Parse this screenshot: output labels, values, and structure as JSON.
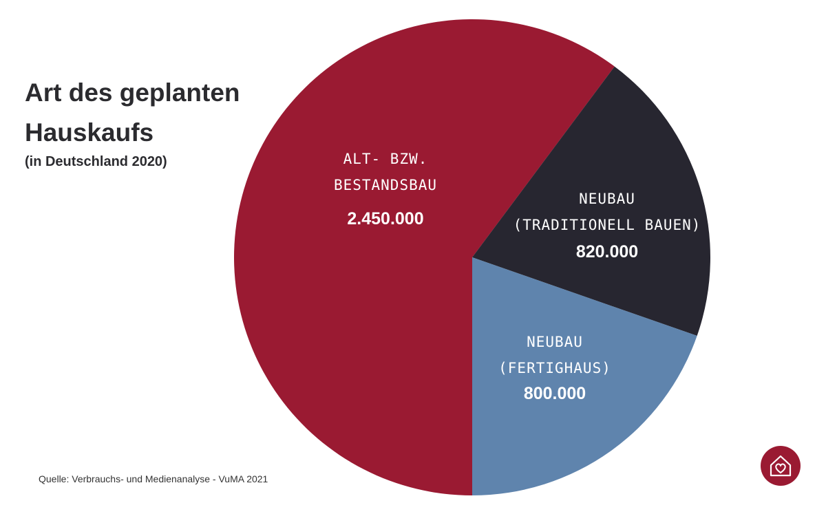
{
  "header": {
    "title_lines": [
      "Art des geplanten",
      "Hauskaufs"
    ],
    "subtitle": "(in Deutschland 2020)"
  },
  "footer": {
    "source": "Quelle: Verbrauchs- und Medienanalyse - VuMA 2021",
    "logo_icon": "house-heart-icon"
  },
  "chart_data": {
    "type": "pie",
    "title": "Art des geplanten Hauskaufs",
    "subtitle": "(in Deutschland 2020)",
    "legend": "none",
    "slices": [
      {
        "label_lines": [
          "ALT- BZW.",
          "BESTANDSBAU"
        ],
        "value": 2450000,
        "value_label": "2.450.000",
        "color": "#9a1a32"
      },
      {
        "label_lines": [
          "NEUBAU",
          "(TRADITIONELL BAUEN)"
        ],
        "value": 820000,
        "value_label": "820.000",
        "color": "#272630"
      },
      {
        "label_lines": [
          "NEUBAU",
          "(FERTIGHAUS)"
        ],
        "value": 800000,
        "value_label": "800.000",
        "color": "#5f84ad"
      }
    ]
  }
}
